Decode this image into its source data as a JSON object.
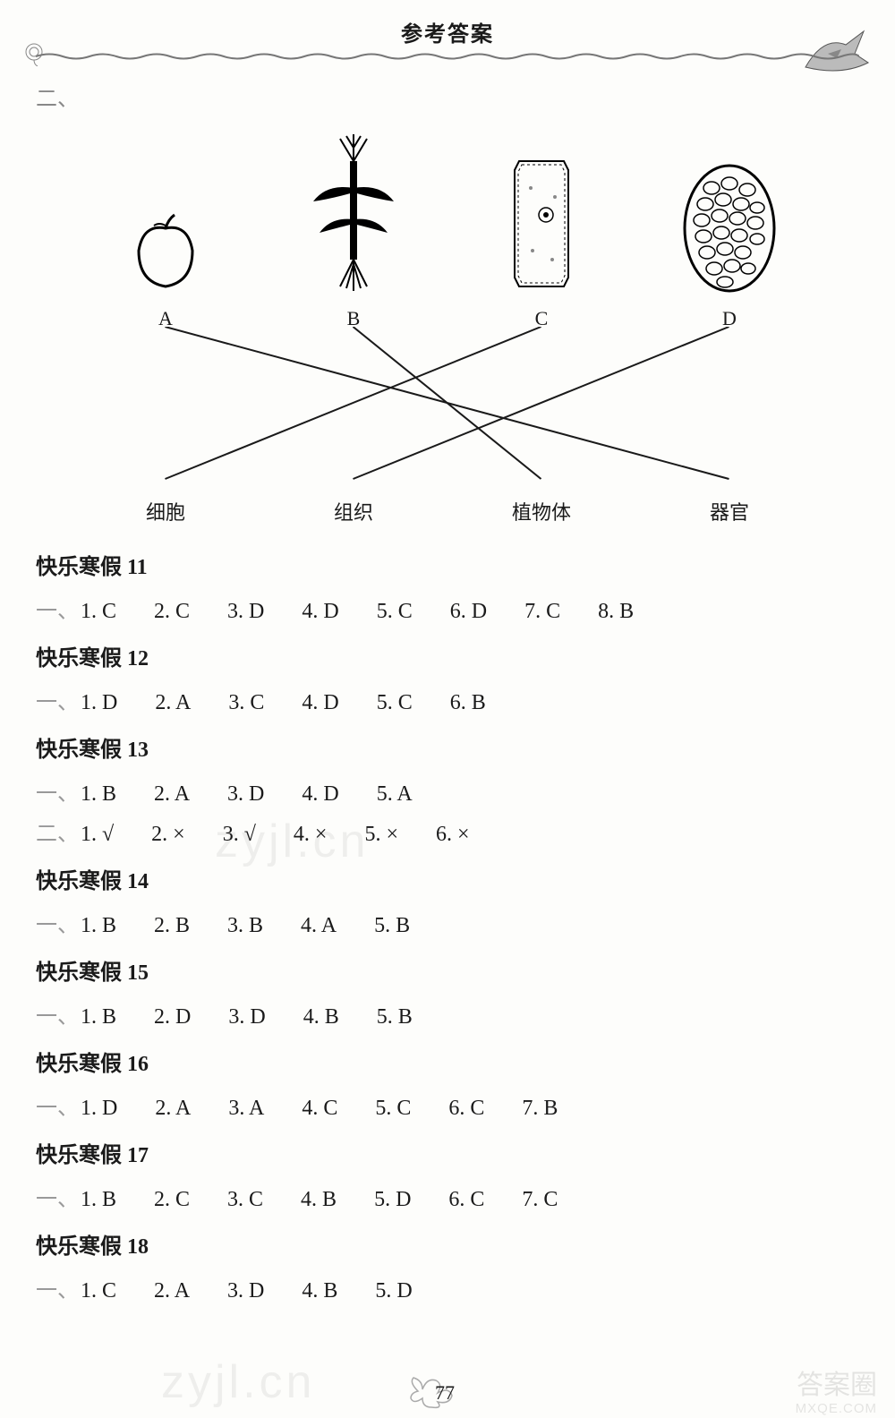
{
  "header": {
    "title": "参考答案"
  },
  "section_two_label": "二、",
  "diagram": {
    "top_items": [
      {
        "label": "A",
        "shape": "apple"
      },
      {
        "label": "B",
        "shape": "plant"
      },
      {
        "label": "C",
        "shape": "cell"
      },
      {
        "label": "D",
        "shape": "tissue-oval"
      }
    ],
    "bottom_items": [
      "细胞",
      "组织",
      "植物体",
      "器官"
    ],
    "connections": [
      {
        "from": 0,
        "to": 3
      },
      {
        "from": 1,
        "to": 2
      },
      {
        "from": 2,
        "to": 0
      },
      {
        "from": 3,
        "to": 1
      }
    ],
    "line_color": "#1a1a1a",
    "line_width": 2
  },
  "blocks": [
    {
      "title": "快乐寒假 11",
      "rows": [
        {
          "prefix": "一、",
          "items": [
            "1. C",
            "2. C",
            "3. D",
            "4. D",
            "5. C",
            "6. D",
            "7. C",
            "8. B"
          ]
        }
      ]
    },
    {
      "title": "快乐寒假 12",
      "rows": [
        {
          "prefix": "一、",
          "items": [
            "1. D",
            "2. A",
            "3. C",
            "4. D",
            "5. C",
            "6. B"
          ]
        }
      ]
    },
    {
      "title": "快乐寒假 13",
      "rows": [
        {
          "prefix": "一、",
          "items": [
            "1. B",
            "2. A",
            "3. D",
            "4. D",
            "5. A"
          ]
        },
        {
          "prefix": "二、",
          "items": [
            "1. √",
            "2. ×",
            "3. √",
            "4. ×",
            "5. ×",
            "6. ×"
          ]
        }
      ]
    },
    {
      "title": "快乐寒假 14",
      "rows": [
        {
          "prefix": "一、",
          "items": [
            "1. B",
            "2. B",
            "3. B",
            "4. A",
            "5. B"
          ]
        }
      ]
    },
    {
      "title": "快乐寒假 15",
      "rows": [
        {
          "prefix": "一、",
          "items": [
            "1. B",
            "2. D",
            "3. D",
            "4. B",
            "5. B"
          ]
        }
      ]
    },
    {
      "title": "快乐寒假 16",
      "rows": [
        {
          "prefix": "一、",
          "items": [
            "1. D",
            "2. A",
            "3. A",
            "4. C",
            "5. C",
            "6. C",
            "7. B"
          ]
        }
      ]
    },
    {
      "title": "快乐寒假 17",
      "rows": [
        {
          "prefix": "一、",
          "items": [
            "1. B",
            "2. C",
            "3. C",
            "4. B",
            "5. D",
            "6. C",
            "7. C"
          ]
        }
      ]
    },
    {
      "title": "快乐寒假 18",
      "rows": [
        {
          "prefix": "一、",
          "items": [
            "1. C",
            "2. A",
            "3. D",
            "4. B",
            "5. D"
          ]
        }
      ]
    }
  ],
  "footer": {
    "page": "77"
  },
  "watermarks": {
    "wm1": "zyjl.cn",
    "wm2": "zyjl.cn",
    "corner": "答案圈",
    "corner_sub": "MXQE.COM"
  },
  "colors": {
    "text": "#1a1a1a",
    "faint": "#999999",
    "background": "#fdfdfb"
  },
  "typography": {
    "title_fontsize": 24,
    "body_fontsize": 24,
    "label_fontsize": 22
  }
}
